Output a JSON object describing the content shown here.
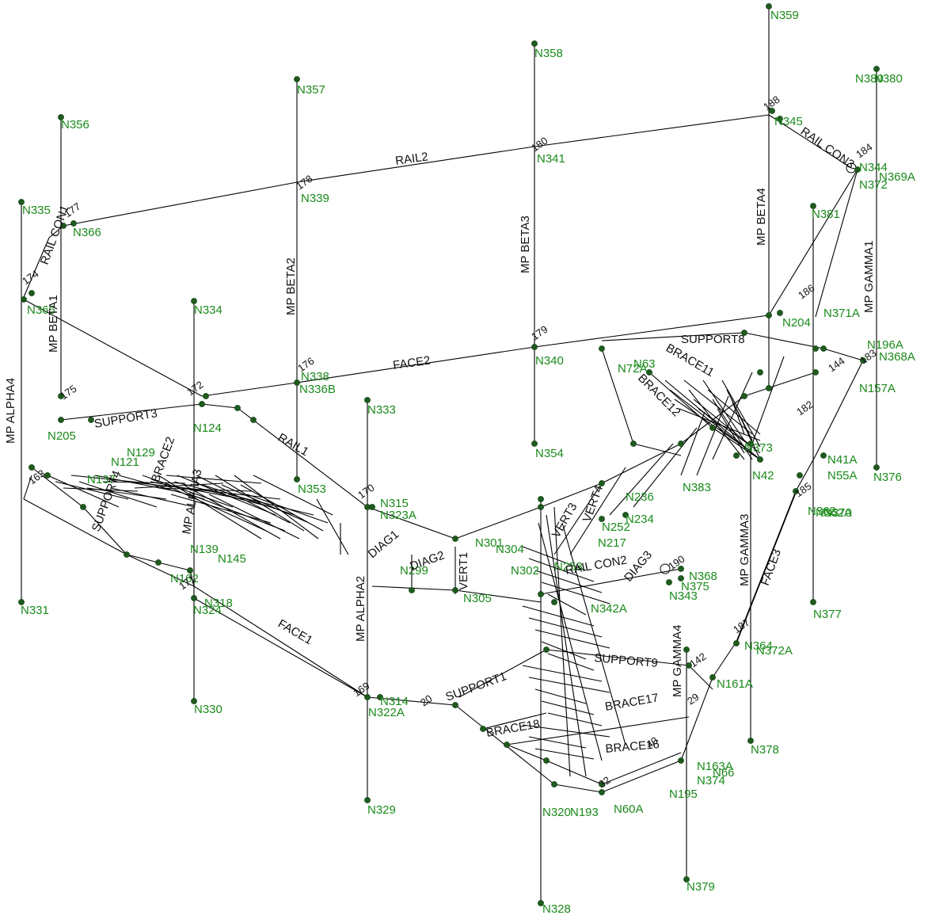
{
  "colors": {
    "member": "#000000",
    "node": "#1f5a1f",
    "node_label": "#1a8a1a",
    "background": "#ffffff"
  },
  "node_labels": [
    "N359",
    "N358",
    "N380",
    "N357",
    "N356",
    "N345",
    "N341",
    "N339",
    "N372",
    "N369A",
    "N344",
    "N335",
    "N366",
    "N381",
    "N365",
    "N371A",
    "N334",
    "N204",
    "N340",
    "N336B",
    "N338",
    "N196A",
    "N368A",
    "N157A",
    "N333",
    "N205",
    "N124",
    "N121",
    "N129",
    "N354",
    "N353",
    "N315",
    "N323A",
    "N376",
    "N383",
    "N236",
    "N234",
    "N217",
    "N252",
    "N41A",
    "N55A",
    "N362",
    "N370",
    "N373",
    "N253",
    "N342A",
    "N368",
    "N375",
    "N343",
    "N331",
    "N318",
    "N324",
    "N377",
    "N372A",
    "N161A",
    "N314",
    "N322A",
    "N380",
    "N330",
    "N378",
    "N374",
    "N163A",
    "N195",
    "N329",
    "N320",
    "N193",
    "N60A",
    "N379",
    "N328",
    "N299",
    "N305",
    "N301",
    "N302",
    "N304",
    "N63",
    "N72A",
    "N42",
    "N364",
    "N362A",
    "N66",
    "N137",
    "N139",
    "N145",
    "N162"
  ],
  "member_labels": [
    "RAIL2",
    "RAIL CON3",
    "MP BETA3",
    "MP BETA4",
    "MP GAMMA1",
    "RAIL CON1",
    "MP BETA2",
    "MP BETA1",
    "MP ALPHA4",
    "FACE2",
    "SUPPORT3",
    "BRACE2",
    "RAIL1",
    "SUPPORT4",
    "BRACE11",
    "BRACE12",
    "SUPPORT8",
    "MP ALPHA3",
    "FACE1",
    "MP ALPHA2",
    "RAIL CON2",
    "MP GAMMA3",
    "FACE3",
    "SUPPORT1",
    "SUPPORT9",
    "BRACE17",
    "BRACE18",
    "BRACE16",
    "MP GAMMA4",
    "VERT1",
    "DIAG1",
    "VERT3",
    "VERT4",
    "DIAG2",
    "DIAG3"
  ],
  "member_numbers": [
    "188",
    "180",
    "178",
    "184",
    "177",
    "174",
    "186",
    "179",
    "172",
    "176",
    "175",
    "182",
    "183",
    "144",
    "185",
    "170",
    "190",
    "187",
    "142",
    "169",
    "20",
    "29",
    "32",
    "40",
    "171",
    "163"
  ]
}
